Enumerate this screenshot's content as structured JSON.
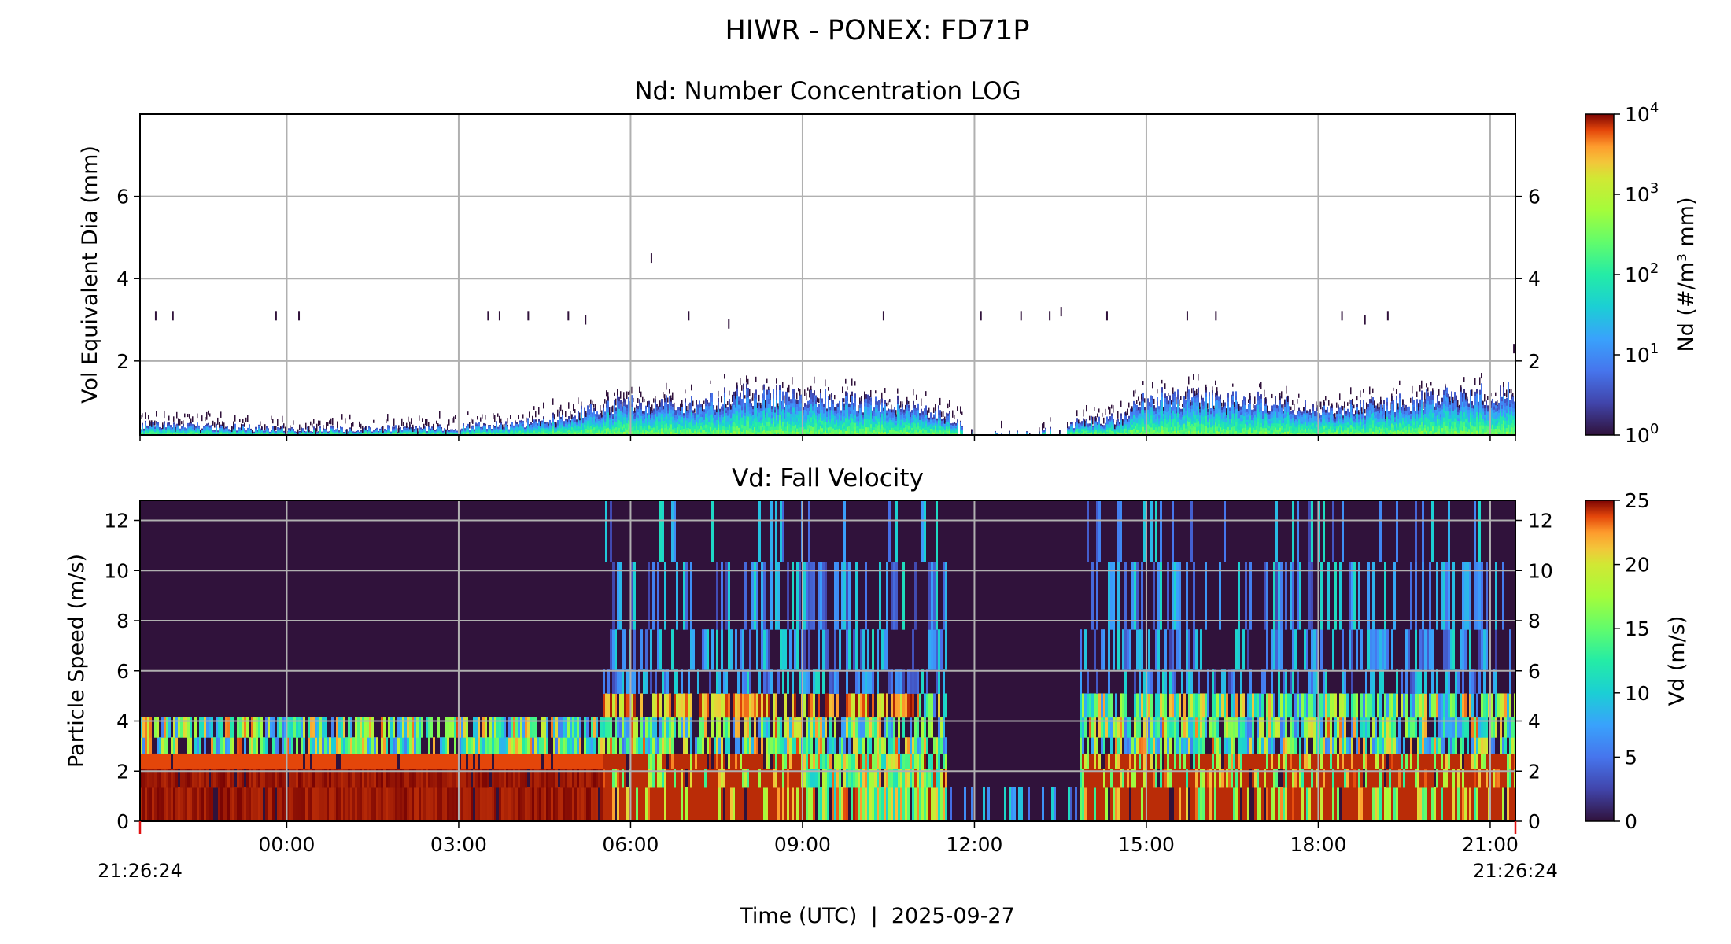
{
  "figure": {
    "suptitle": "HIWR - PONEX: FD71P",
    "xlabel": "Time (UTC)  |  2025-09-27",
    "start_label": "21:26:24",
    "end_label": "21:26:24"
  },
  "chart_data": [
    {
      "type": "heatmap",
      "title": "Nd: Number Concentration LOG",
      "ylabel": "Vol Equivalent Dia (mm)",
      "x_range_hours": [
        -2.56,
        21.44
      ],
      "ylim": [
        0.2,
        8.0
      ],
      "y_scale": "linear",
      "x_ticks": [
        {
          "value": 0,
          "label": "00:00"
        },
        {
          "value": 3,
          "label": "03:00"
        },
        {
          "value": 6,
          "label": "06:00"
        },
        {
          "value": 9,
          "label": "09:00"
        },
        {
          "value": 12,
          "label": "12:00"
        },
        {
          "value": 15,
          "label": "15:00"
        },
        {
          "value": 18,
          "label": "18:00"
        },
        {
          "value": 21,
          "label": "21:00"
        }
      ],
      "y_ticks": [
        {
          "value": 2,
          "label": "2"
        },
        {
          "value": 4,
          "label": "4"
        },
        {
          "value": 6,
          "label": "6"
        }
      ],
      "grid": true,
      "colorbar": {
        "label": "Nd (#/m³ mm)",
        "scale": "log",
        "colormap": "turbo",
        "ticks": [
          {
            "value": 1,
            "base": "10",
            "exp": "0"
          },
          {
            "value": 10,
            "base": "10",
            "exp": "1"
          },
          {
            "value": 100,
            "base": "10",
            "exp": "2"
          },
          {
            "value": 1000,
            "base": "10",
            "exp": "3"
          },
          {
            "value": 10000,
            "base": "10",
            "exp": "4"
          }
        ]
      },
      "max_diameter_envelope": [
        [
          -2.56,
          0.45
        ],
        [
          -1.5,
          0.4
        ],
        [
          0,
          0.35
        ],
        [
          1.5,
          0.35
        ],
        [
          3.0,
          0.4
        ],
        [
          4.0,
          0.45
        ],
        [
          5.0,
          0.7
        ],
        [
          5.5,
          0.9
        ],
        [
          6.0,
          1.0
        ],
        [
          7.0,
          0.9
        ],
        [
          8.0,
          1.2
        ],
        [
          9.0,
          1.1
        ],
        [
          10.0,
          1.0
        ],
        [
          11.0,
          0.9
        ],
        [
          11.5,
          0.7
        ],
        [
          12.0,
          0.3
        ],
        [
          13.0,
          0.25
        ],
        [
          13.8,
          0.5
        ],
        [
          14.5,
          0.6
        ],
        [
          15.0,
          1.1
        ],
        [
          16.0,
          1.1
        ],
        [
          17.0,
          1.0
        ],
        [
          18.0,
          0.8
        ],
        [
          19.0,
          0.9
        ],
        [
          20.0,
          1.1
        ],
        [
          21.0,
          1.2
        ],
        [
          21.44,
          1.3
        ]
      ],
      "isolated_large_drops": [
        [
          -2.3,
          3.1
        ],
        [
          -2.0,
          3.1
        ],
        [
          -0.2,
          3.1
        ],
        [
          0.2,
          3.1
        ],
        [
          3.5,
          3.1
        ],
        [
          3.7,
          3.1
        ],
        [
          4.2,
          3.1
        ],
        [
          4.9,
          3.1
        ],
        [
          5.2,
          3.0
        ],
        [
          6.35,
          4.5
        ],
        [
          7.0,
          3.1
        ],
        [
          7.7,
          2.9
        ],
        [
          10.4,
          3.1
        ],
        [
          12.1,
          3.1
        ],
        [
          12.8,
          3.1
        ],
        [
          13.3,
          3.1
        ],
        [
          13.5,
          3.2
        ],
        [
          14.3,
          3.1
        ],
        [
          15.7,
          3.1
        ],
        [
          16.2,
          3.1
        ],
        [
          18.4,
          3.1
        ],
        [
          18.8,
          3.0
        ],
        [
          19.2,
          3.1
        ],
        [
          21.4,
          2.3
        ]
      ]
    },
    {
      "type": "heatmap",
      "title": "Vd: Fall Velocity",
      "ylabel": "Particle Speed (m/s)",
      "x_range_hours": [
        -2.56,
        21.44
      ],
      "ylim": [
        0,
        12.8
      ],
      "x_ticks": [
        {
          "value": 0,
          "label": "00:00"
        },
        {
          "value": 3,
          "label": "03:00"
        },
        {
          "value": 6,
          "label": "06:00"
        },
        {
          "value": 9,
          "label": "09:00"
        },
        {
          "value": 12,
          "label": "12:00"
        },
        {
          "value": 15,
          "label": "15:00"
        },
        {
          "value": 18,
          "label": "18:00"
        },
        {
          "value": 21,
          "label": "21:00"
        }
      ],
      "y_ticks": [
        {
          "value": 0,
          "label": "0"
        },
        {
          "value": 2,
          "label": "2"
        },
        {
          "value": 4,
          "label": "4"
        },
        {
          "value": 6,
          "label": "6"
        },
        {
          "value": 8,
          "label": "8"
        },
        {
          "value": 10,
          "label": "10"
        },
        {
          "value": 12,
          "label": "12"
        }
      ],
      "grid": true,
      "colorbar": {
        "label": "Vd (m/s)",
        "scale": "linear",
        "colormap": "turbo",
        "range": [
          0,
          25
        ],
        "ticks": [
          {
            "value": 0,
            "label": "0"
          },
          {
            "value": 5,
            "label": "5"
          },
          {
            "value": 10,
            "label": "10"
          },
          {
            "value": 15,
            "label": "15"
          },
          {
            "value": 20,
            "label": "20"
          },
          {
            "value": 25,
            "label": "25"
          }
        ]
      },
      "speed_bins": [
        0.8,
        1.9,
        2.3,
        3.1,
        3.6,
        4.7,
        5.5,
        6.6,
        8.7,
        12.0
      ],
      "activity_by_period": [
        {
          "from": -2.56,
          "to": 5.5,
          "max_speed": 4.0
        },
        {
          "from": 5.5,
          "to": 11.5,
          "max_speed": 12.8
        },
        {
          "from": 11.5,
          "to": 13.8,
          "max_speed": 0.8
        },
        {
          "from": 13.8,
          "to": 21.44,
          "max_speed": 12.8
        }
      ]
    }
  ]
}
